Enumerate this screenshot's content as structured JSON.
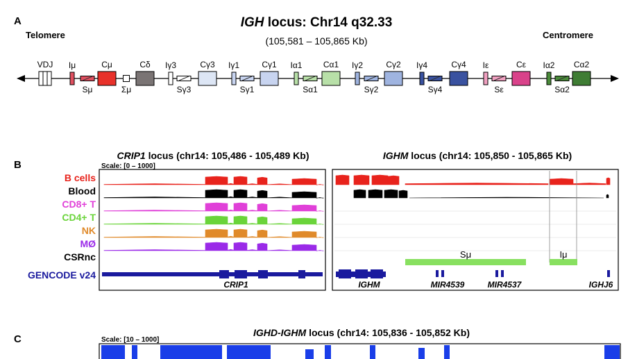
{
  "panel_a": {
    "letter": "A",
    "title_italic": "IGH",
    "title_rest": " locus: Chr14 q32.33",
    "range": "(105,581 – 105,865 Kb)",
    "left_end": "Telomere",
    "right_end": "Centromere",
    "segments": [
      {
        "top": "VDJ",
        "bottom": "",
        "kind": "vdj",
        "color": "#ffffff"
      },
      {
        "top": "Iμ",
        "bottom": "",
        "kind": "i",
        "color": "#e05060"
      },
      {
        "top": "",
        "bottom": "Sμ",
        "kind": "s",
        "color": "#e05060"
      },
      {
        "top": "Cμ",
        "bottom": "",
        "kind": "c",
        "color": "#e8312a"
      },
      {
        "top": "",
        "bottom": "Σμ",
        "kind": "sigma",
        "color": "#ffffff"
      },
      {
        "top": "Cδ",
        "bottom": "",
        "kind": "c",
        "color": "#7a7474"
      },
      {
        "top": "Iγ3",
        "bottom": "",
        "kind": "i",
        "color": "#ffffff"
      },
      {
        "top": "",
        "bottom": "Sγ3",
        "kind": "s",
        "color": "#ffffff"
      },
      {
        "top": "Cγ3",
        "bottom": "",
        "kind": "c",
        "color": "#dde6f5"
      },
      {
        "top": "Iγ1",
        "bottom": "",
        "kind": "i",
        "color": "#c8d4f0"
      },
      {
        "top": "",
        "bottom": "Sγ1",
        "kind": "s",
        "color": "#c8d4f0"
      },
      {
        "top": "Cγ1",
        "bottom": "",
        "kind": "c",
        "color": "#c8d4f0"
      },
      {
        "top": "Iα1",
        "bottom": "",
        "kind": "i",
        "color": "#b8e0a8"
      },
      {
        "top": "",
        "bottom": "Sα1",
        "kind": "s",
        "color": "#b8e0a8"
      },
      {
        "top": "Cα1",
        "bottom": "",
        "kind": "c",
        "color": "#b8e0a8"
      },
      {
        "top": "Iγ2",
        "bottom": "",
        "kind": "i",
        "color": "#9fb4e0"
      },
      {
        "top": "",
        "bottom": "Sγ2",
        "kind": "s",
        "color": "#9fb4e0"
      },
      {
        "top": "Cγ2",
        "bottom": "",
        "kind": "c",
        "color": "#9fb4e0"
      },
      {
        "top": "Iγ4",
        "bottom": "",
        "kind": "i",
        "color": "#3a52a0"
      },
      {
        "top": "",
        "bottom": "Sγ4",
        "kind": "s",
        "color": "#3a52a0"
      },
      {
        "top": "Cγ4",
        "bottom": "",
        "kind": "c",
        "color": "#3a52a0"
      },
      {
        "top": "Iε",
        "bottom": "",
        "kind": "i",
        "color": "#f0a0c0"
      },
      {
        "top": "",
        "bottom": "Sε",
        "kind": "s",
        "color": "#f0a0c0"
      },
      {
        "top": "Cε",
        "bottom": "",
        "kind": "c",
        "color": "#d9428a"
      },
      {
        "top": "Iα2",
        "bottom": "",
        "kind": "i",
        "color": "#4a8a3a"
      },
      {
        "top": "",
        "bottom": "Sα2",
        "kind": "s",
        "color": "#4a8a3a"
      },
      {
        "top": "Cα2",
        "bottom": "",
        "kind": "c",
        "color": "#3f7d34"
      }
    ]
  },
  "panel_b": {
    "letter": "B",
    "scale": "Scale: [0 – 1000]",
    "left_title_italic": "CRIP1",
    "left_title_rest": " locus (chr14: 105,486 - 105,489 Kb)",
    "right_title_italic": "IGHM",
    "right_title_rest": " locus (chr14: 105,850 - 105,865 Kb)",
    "tracks": [
      {
        "label": "B cells",
        "color": "#e8231c"
      },
      {
        "label": "Blood",
        "color": "#000000"
      },
      {
        "label": "CD8+ T",
        "color": "#e040d8"
      },
      {
        "label": "CD4+ T",
        "color": "#6ad43a"
      },
      {
        "label": "NK",
        "color": "#e08a2a"
      },
      {
        "label": "MØ",
        "color": "#9a2ae8"
      },
      {
        "label": "CSRnc",
        "color": "#000000"
      },
      {
        "label": "GENCODE v24",
        "color": "#1a1a9e"
      }
    ],
    "csrnc_features": {
      "s_mu": "Sμ",
      "i_mu": "Iμ",
      "color": "#88e060"
    },
    "gene_labels_left": [
      "CRIP1"
    ],
    "gene_labels_right": [
      "IGHM",
      "MIR4539",
      "MIR4537",
      "IGHJ6"
    ]
  },
  "panel_c": {
    "letter": "C",
    "scale": "Scale: [10 – 1000]",
    "title_italic": "IGHD-IGHM",
    "title_rest": " locus (chr14: 105,836 - 105,852 Kb)",
    "color": "#1a3ee8"
  }
}
